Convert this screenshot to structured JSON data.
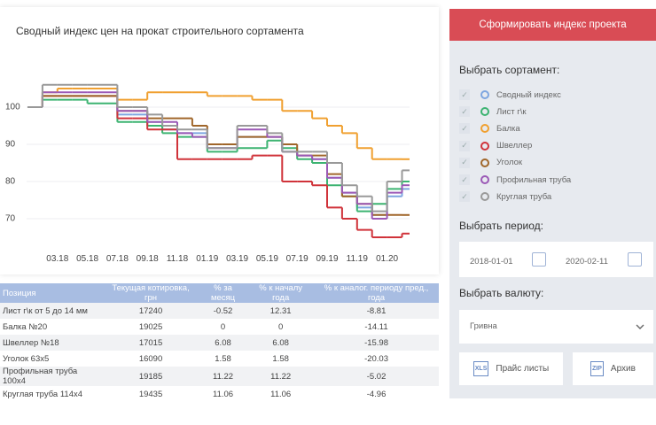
{
  "chart_data": {
    "type": "line",
    "step": true,
    "title": "Сводный индекс цен на прокат строительного сортамента",
    "categories": [
      null,
      null,
      "03.18",
      null,
      "05.18",
      null,
      "07.18",
      null,
      "09.18",
      null,
      "11.18",
      null,
      "01.19",
      null,
      "03.19",
      null,
      "05.19",
      null,
      "07.19",
      null,
      "09.19",
      null,
      "11.19",
      null,
      "01.20",
      null
    ],
    "ylim": [
      62,
      108
    ],
    "yticks": [
      70,
      80,
      90,
      100
    ],
    "grid": true,
    "series": [
      {
        "name": "Сводный индекс",
        "color": "#7ea6e0",
        "values": [
          100,
          103,
          103,
          103,
          103,
          103,
          98,
          98,
          96,
          94,
          93,
          93,
          89,
          89,
          92,
          92,
          92,
          88,
          87,
          86,
          81,
          77,
          73,
          71,
          76,
          78
        ]
      },
      {
        "name": "Лист г\\к",
        "color": "#3cb371",
        "values": [
          100,
          102,
          102,
          102,
          101,
          101,
          96,
          96,
          95,
          93,
          92,
          92,
          88,
          88,
          89,
          89,
          91,
          89,
          86,
          85,
          79,
          76,
          72,
          74,
          78,
          80
        ]
      },
      {
        "name": "Балка",
        "color": "#f0a030",
        "values": [
          100,
          104,
          105,
          105,
          105,
          105,
          102,
          102,
          104,
          104,
          104,
          104,
          103,
          103,
          103,
          102,
          102,
          99,
          99,
          97,
          95,
          93,
          89,
          86,
          86,
          86
        ]
      },
      {
        "name": "Швеллер",
        "color": "#d0333a",
        "values": [
          100,
          103,
          103,
          103,
          103,
          103,
          97,
          97,
          94,
          94,
          86,
          86,
          86,
          86,
          86,
          87,
          87,
          80,
          80,
          79,
          73,
          70,
          67,
          65,
          65,
          66
        ]
      },
      {
        "name": "Уголок",
        "color": "#a0662a",
        "values": [
          100,
          103,
          103,
          103,
          103,
          103,
          99,
          99,
          97,
          97,
          97,
          95,
          90,
          90,
          92,
          92,
          92,
          90,
          87,
          87,
          82,
          76,
          74,
          71,
          71,
          71
        ]
      },
      {
        "name": "Профильная труба",
        "color": "#9b59b6",
        "values": [
          100,
          104,
          104,
          104,
          104,
          104,
          99,
          99,
          96,
          96,
          93,
          92,
          89,
          89,
          94,
          94,
          92,
          88,
          87,
          86,
          81,
          77,
          74,
          70,
          77,
          79
        ]
      },
      {
        "name": "Круглая труба",
        "color": "#999999",
        "values": [
          100,
          106,
          106,
          106,
          106,
          106,
          100,
          100,
          98,
          95,
          94,
          94,
          89,
          89,
          95,
          95,
          93,
          88,
          88,
          88,
          85,
          79,
          76,
          72,
          80,
          83
        ]
      }
    ]
  },
  "table": {
    "columns": [
      "Позиция",
      "Текущая котировка, грн",
      "% за месяц",
      "% к началу года",
      "% к аналог. периоду пред., года"
    ],
    "rows": [
      [
        "Лист г\\к от 5 до 14 мм",
        17240,
        -0.52,
        12.31,
        -8.81
      ],
      [
        "Балка №20",
        19025,
        0,
        0,
        -14.11
      ],
      [
        "Швеллер №18",
        17015,
        6.08,
        6.08,
        -15.98
      ],
      [
        "Уголок 63х5",
        16090,
        1.58,
        1.58,
        -20.03
      ],
      [
        "Профильная труба 100х4",
        19185,
        11.22,
        11.22,
        -5.02
      ],
      [
        "Круглая труба 114х4",
        19435,
        11.06,
        11.06,
        -4.96
      ]
    ]
  },
  "sidebar": {
    "button": "Сформировать индекс проекта",
    "assortment_label": "Выбрать сортамент:",
    "period_label": "Выбрать период:",
    "date_from": "2018-01-01",
    "date_to": "2020-02-11",
    "currency_label": "Выбрать валюту:",
    "currency": "Гривна",
    "price_button": "Прайс листы",
    "price_icon": "XLS",
    "archive_button": "Архив",
    "archive_icon": "ZIP"
  }
}
